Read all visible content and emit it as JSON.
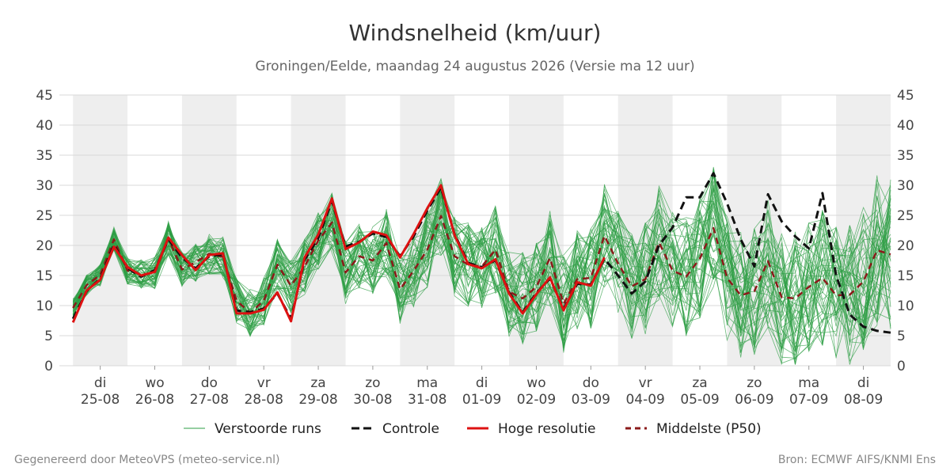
{
  "chart_data": {
    "type": "line",
    "title": "Windsnelheid (km/uur)",
    "subtitle": "Groningen/Eelde, maandag 24 augustus 2026 (Versie ma 12 uur)",
    "ylim": [
      0,
      45
    ],
    "yticks": [
      0,
      5,
      10,
      15,
      20,
      25,
      30,
      35,
      40,
      45
    ],
    "x_start_day": -0.25,
    "x_end_day": 15.0,
    "day_labels": [
      {
        "day": "di",
        "date": "25-08"
      },
      {
        "day": "wo",
        "date": "26-08"
      },
      {
        "day": "do",
        "date": "27-08"
      },
      {
        "day": "vr",
        "date": "28-08"
      },
      {
        "day": "za",
        "date": "29-08"
      },
      {
        "day": "zo",
        "date": "30-08"
      },
      {
        "day": "ma",
        "date": "31-08"
      },
      {
        "day": "di",
        "date": "01-09"
      },
      {
        "day": "wo",
        "date": "02-09"
      },
      {
        "day": "do",
        "date": "03-09"
      },
      {
        "day": "vr",
        "date": "04-09"
      },
      {
        "day": "za",
        "date": "05-09"
      },
      {
        "day": "zo",
        "date": "06-09"
      },
      {
        "day": "ma",
        "date": "07-09"
      },
      {
        "day": "di",
        "date": "08-09"
      }
    ],
    "x": [
      0.0,
      0.25,
      0.5,
      0.75,
      1.0,
      1.25,
      1.5,
      1.75,
      2.0,
      2.25,
      2.5,
      2.75,
      3.0,
      3.25,
      3.5,
      3.75,
      4.0,
      4.25,
      4.5,
      4.75,
      5.0,
      5.25,
      5.5,
      5.75,
      6.0,
      6.25,
      6.5,
      6.75,
      7.0,
      7.25,
      7.5,
      7.75,
      8.0,
      8.25,
      8.5,
      8.75,
      9.0,
      9.25,
      9.5,
      9.75,
      10.0,
      10.25,
      10.5,
      10.75,
      11.0,
      11.25,
      11.5,
      11.75,
      12.0,
      12.25,
      12.5,
      12.75,
      13.0,
      13.25,
      13.5,
      13.75,
      14.0,
      14.25,
      14.5,
      14.75,
      15.0
    ],
    "series": [
      {
        "name": "Hoge resolutie",
        "color": "#dd1111",
        "style": "solid",
        "values": [
          7.2,
          12.5,
          14.3,
          19.8,
          16.4,
          15.0,
          15.6,
          21.3,
          18.4,
          15.9,
          18.4,
          18.7,
          8.7,
          8.7,
          9.3,
          12.2,
          7.4,
          18.0,
          21.8,
          27.8,
          19.4,
          20.5,
          22.3,
          21.7,
          18.0,
          21.9,
          26.2,
          30.0,
          21.7,
          16.9,
          16.2,
          17.7,
          12.0,
          8.7,
          11.9,
          14.7,
          9.2,
          13.9,
          13.3,
          18.0,
          null,
          null,
          null,
          null,
          null,
          null,
          null,
          null,
          null,
          null,
          null,
          null,
          null,
          null,
          null,
          null,
          null,
          null,
          null,
          null,
          null
        ]
      },
      {
        "name": "Controle",
        "color": "#111111",
        "style": "dash",
        "values": [
          7.8,
          12.4,
          14.5,
          20.1,
          16.2,
          14.8,
          15.9,
          21.0,
          18.0,
          16.2,
          18.2,
          18.5,
          9.2,
          8.9,
          9.5,
          12.0,
          7.8,
          17.6,
          21.2,
          27.4,
          19.8,
          20.6,
          22.0,
          21.4,
          18.2,
          21.5,
          25.8,
          29.6,
          21.9,
          17.1,
          16.4,
          17.5,
          12.2,
          8.9,
          12.1,
          14.5,
          9.5,
          13.6,
          13.5,
          17.8,
          15.0,
          12.0,
          14.0,
          20.0,
          23.0,
          28.0,
          28.0,
          32.0,
          27.0,
          21.0,
          16.5,
          28.5,
          24.0,
          21.5,
          19.5,
          28.7,
          15.0,
          8.5,
          6.5,
          5.8,
          5.5
        ]
      },
      {
        "name": "Middelste (P50)",
        "color": "#8b1a1a",
        "style": "dash",
        "values": [
          9.6,
          13.4,
          15.1,
          21.0,
          15.8,
          15.2,
          15.4,
          21.2,
          16.0,
          17.2,
          18.6,
          18.1,
          10.8,
          8.8,
          10.8,
          16.8,
          13.3,
          16.5,
          20.8,
          23.8,
          15.5,
          18.2,
          17.5,
          20.4,
          12.7,
          15.8,
          19.3,
          24.9,
          18.2,
          16.8,
          16.5,
          19.3,
          12.3,
          11.2,
          13.1,
          17.9,
          10.3,
          14.4,
          14.6,
          21.6,
          17.0,
          13.2,
          14.4,
          20.5,
          15.8,
          14.8,
          17.8,
          22.9,
          14.6,
          11.7,
          12.4,
          17.4,
          11.4,
          11.2,
          13.1,
          14.6,
          11.7,
          11.8,
          14.0,
          19.2,
          18.5
        ]
      }
    ],
    "ensemble": {
      "name": "Verstoorde runs",
      "color": "#2e9e45",
      "members": 50
    },
    "shaded_days": [
      0,
      2,
      4,
      6,
      8,
      10,
      12,
      14
    ],
    "grid": true,
    "legend_position": "bottom"
  },
  "legend": [
    {
      "label": "Verstoorde runs",
      "color": "#2e9e45",
      "style": "thin"
    },
    {
      "label": "Controle",
      "color": "#111111",
      "style": "dash"
    },
    {
      "label": "Hoge resolutie",
      "color": "#dd1111",
      "style": "solid"
    },
    {
      "label": "Middelste (P50)",
      "color": "#8b1a1a",
      "style": "dash"
    }
  ],
  "footer": {
    "left": "Gegenereerd door MeteoVPS (meteo-service.nl)",
    "right": "Bron: ECMWF AIFS/KNMI Ens"
  }
}
